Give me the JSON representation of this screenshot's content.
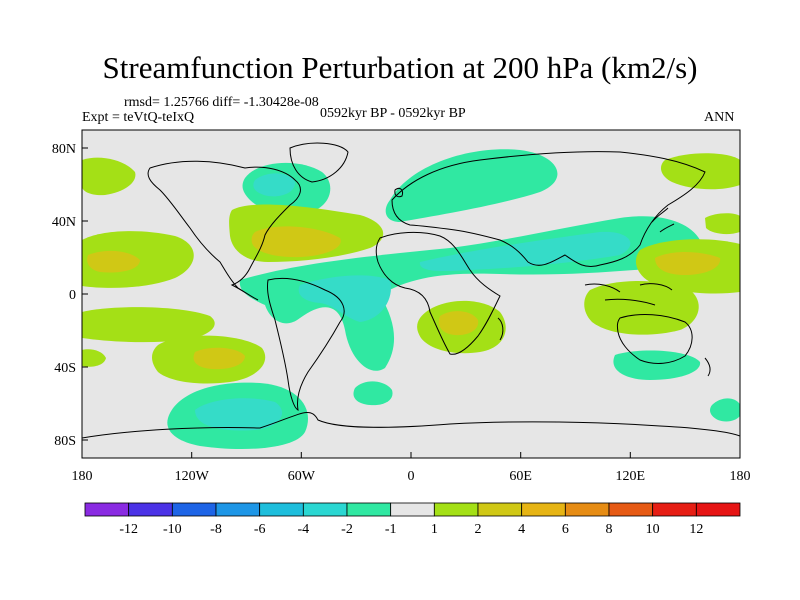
{
  "title": "Streamfunction Perturbation at 200 hPa (km2/s)",
  "stats_line": "rmsd= 1.25766 diff= -1.30428e-08",
  "expt_line": "Expt = teVtQ-teIxQ",
  "period_line": "0592kyr BP - 0592kyr BP",
  "season": "ANN",
  "colors": {
    "neutral": "#e6e6e6",
    "neg_m1": "#30e8a2",
    "neg_m2": "#35dcc8",
    "pos_1": "#a4e016",
    "pos_2": "#d0c815"
  },
  "chart_data": {
    "type": "map",
    "variable": "Streamfunction Perturbation at 200 hPa",
    "units": "km2/s",
    "x_ticks": [
      "180",
      "120W",
      "60W",
      "0",
      "60E",
      "120E",
      "180"
    ],
    "y_ticks": [
      "80N",
      "40N",
      "0",
      "40S",
      "80S"
    ],
    "colorbar": {
      "levels": [
        "-12",
        "-10",
        "-8",
        "-6",
        "-4",
        "-2",
        "-1",
        "1",
        "2",
        "4",
        "6",
        "8",
        "10",
        "12"
      ],
      "colors": [
        "#8a2be2",
        "#4b32e6",
        "#1e64e6",
        "#1e96e6",
        "#1ebedc",
        "#2ad7d2",
        "#30e8a2",
        "#e6e6e6",
        "#a4e016",
        "#d0c815",
        "#e6b414",
        "#e68c14",
        "#e65a14",
        "#e61e14",
        "#e61414"
      ]
    }
  }
}
